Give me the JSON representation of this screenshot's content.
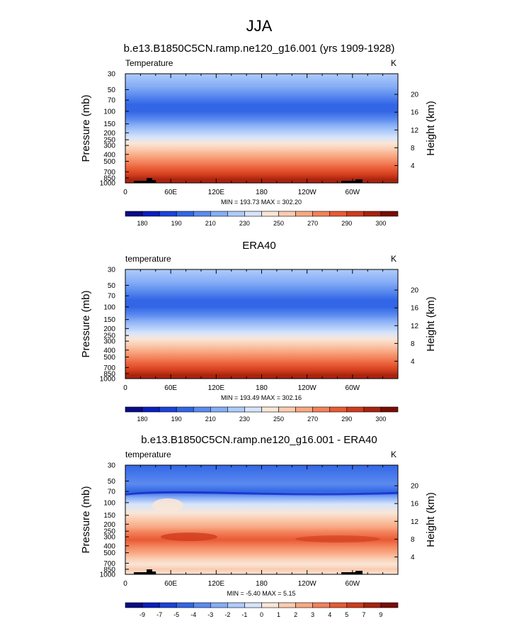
{
  "page": {
    "title": "JJA"
  },
  "chart_data": [
    {
      "type": "heatmap",
      "title": "b.e13.B1850C5CN.ramp.ne120_g16.001 (yrs 1909-1928)",
      "left_label": "Temperature",
      "units": "K",
      "ylabel": "Pressure (mb)",
      "y2label": "Height (km)",
      "xticks": [
        "0",
        "60E",
        "120E",
        "180",
        "120W",
        "60W"
      ],
      "yticks": [
        "30",
        "50",
        "70",
        "100",
        "150",
        "200",
        "250",
        "300",
        "400",
        "500",
        "700",
        "850",
        "1000"
      ],
      "y2ticks": [
        "20",
        "16",
        "12",
        "8",
        "4"
      ],
      "ylim": [
        1000,
        30
      ],
      "stats": "MIN = 193.73  MAX = 302.20",
      "min": 193.73,
      "max": 302.2,
      "colorbar_levels": [
        "180",
        "190",
        "210",
        "230",
        "250",
        "270",
        "290",
        "300"
      ],
      "has_topography": true
    },
    {
      "type": "heatmap",
      "title": "ERA40",
      "left_label": "temperature",
      "units": "K",
      "ylabel": "Pressure (mb)",
      "y2label": "Height (km)",
      "xticks": [
        "0",
        "60E",
        "120E",
        "180",
        "120W",
        "60W"
      ],
      "yticks": [
        "30",
        "50",
        "70",
        "100",
        "150",
        "200",
        "250",
        "300",
        "400",
        "500",
        "700",
        "850",
        "1000"
      ],
      "y2ticks": [
        "20",
        "16",
        "12",
        "8",
        "4"
      ],
      "ylim": [
        1000,
        30
      ],
      "stats": "MIN = 193.49  MAX = 302.16",
      "min": 193.49,
      "max": 302.16,
      "colorbar_levels": [
        "180",
        "190",
        "210",
        "230",
        "250",
        "270",
        "290",
        "300"
      ],
      "has_topography": false
    },
    {
      "type": "heatmap",
      "title": "b.e13.B1850C5CN.ramp.ne120_g16.001 - ERA40",
      "left_label": "temperature",
      "units": "K",
      "ylabel": "Pressure (mb)",
      "y2label": "Height (km)",
      "xticks": [
        "0",
        "60E",
        "120E",
        "180",
        "120W",
        "60W"
      ],
      "yticks": [
        "30",
        "50",
        "70",
        "100",
        "150",
        "200",
        "250",
        "300",
        "400",
        "500",
        "700",
        "850",
        "1000"
      ],
      "y2ticks": [
        "20",
        "16",
        "12",
        "8",
        "4"
      ],
      "ylim": [
        1000,
        30
      ],
      "stats": "MIN = -5.40  MAX =  5.15",
      "min": -5.4,
      "max": 5.15,
      "colorbar_levels": [
        "-9",
        "-7",
        "-5",
        "-4",
        "-3",
        "-2",
        "-1",
        "0",
        "1",
        "2",
        "3",
        "4",
        "5",
        "7",
        "9"
      ],
      "has_topography": true
    }
  ],
  "colors": {
    "colorbar": [
      "#0a0c86",
      "#0a1ec0",
      "#1c43d8",
      "#3366e6",
      "#5b8bef",
      "#86adf6",
      "#aecbfa",
      "#d6e4fb",
      "#f8e6d7",
      "#fbcbb0",
      "#f8a882",
      "#f3815a",
      "#e85a34",
      "#cf3c1d",
      "#a8230f",
      "#7a0d05"
    ]
  }
}
